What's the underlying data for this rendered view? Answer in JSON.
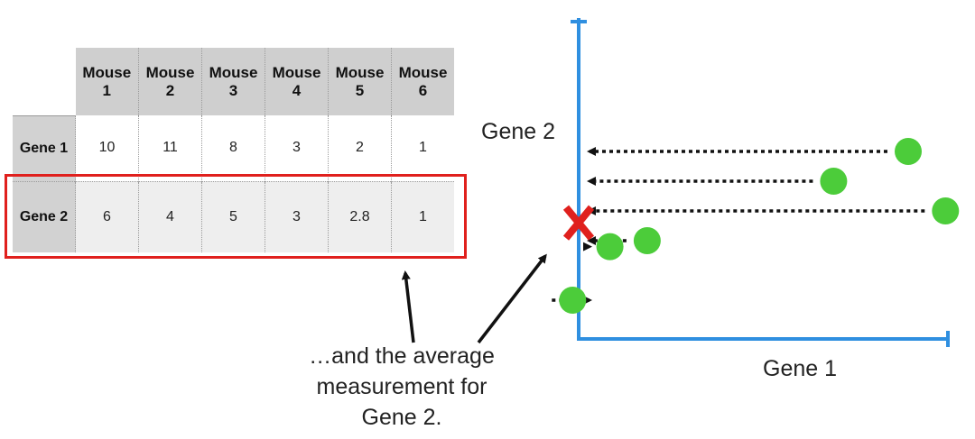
{
  "table": {
    "columns": [
      "Mouse\n1",
      "Mouse\n2",
      "Mouse\n3",
      "Mouse\n4",
      "Mouse\n5",
      "Mouse\n6"
    ],
    "rows": [
      {
        "label": "Gene 1",
        "values": [
          "10",
          "11",
          "8",
          "3",
          "2",
          "1"
        ]
      },
      {
        "label": "Gene 2",
        "values": [
          "6",
          "4",
          "5",
          "3",
          "2.8",
          "1"
        ]
      }
    ]
  },
  "caption": "…and the average\nmeasurement for\nGene 2.",
  "plot": {
    "x_label": "Gene 1",
    "y_label": "Gene 2",
    "mean_marker": "X"
  },
  "colors": {
    "axis": "#2f8fe0",
    "point": "#4ccc3a",
    "highlight": "#e0201d",
    "mean_marker": "#e0201d",
    "arrow": "#111111"
  },
  "chart_data": {
    "type": "scatter",
    "xlabel": "Gene 1",
    "ylabel": "Gene 2",
    "x": [
      10,
      11,
      8,
      3,
      2,
      1
    ],
    "y": [
      6,
      4,
      5,
      3,
      2.8,
      1
    ],
    "mean_marker_y": 3.6
  }
}
